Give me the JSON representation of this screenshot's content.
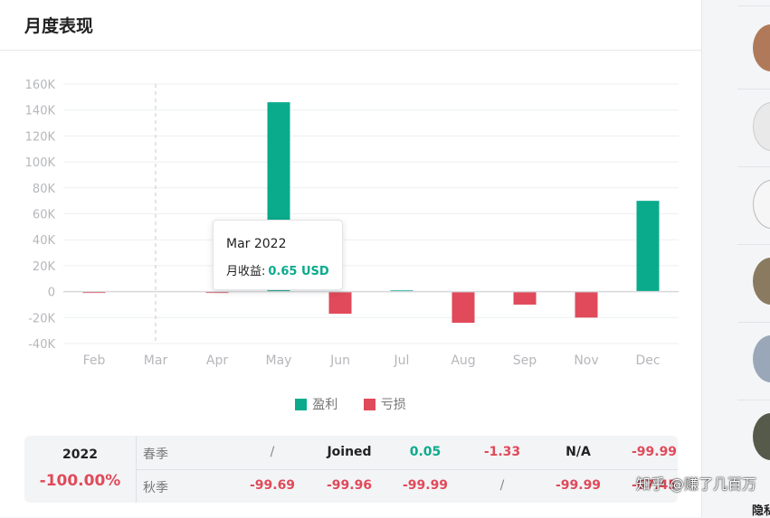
{
  "card": {
    "title": "月度表现"
  },
  "chart_data": {
    "type": "bar",
    "categories": [
      "Feb",
      "Mar",
      "Apr",
      "May",
      "Jun",
      "Jul",
      "Aug",
      "Sep",
      "Nov",
      "Dec"
    ],
    "series": [
      {
        "name": "盈利",
        "color": "#0aab8c",
        "values": [
          0,
          0,
          0,
          146000,
          0,
          1000,
          0,
          0,
          0,
          70000
        ]
      },
      {
        "name": "亏损",
        "color": "#e04a5a",
        "values": [
          -500,
          0,
          -600,
          0,
          -17000,
          0,
          -24000,
          -10000,
          -20000,
          0
        ]
      }
    ],
    "y_ticks": [
      "160K",
      "140K",
      "120K",
      "100K",
      "80K",
      "60K",
      "40K",
      "20K",
      "0",
      "-20K",
      "-40K"
    ],
    "ylim": [
      -40000,
      160000
    ],
    "grid": true,
    "legend": "bottom-center"
  },
  "tooltip": {
    "title": "Mar 2022",
    "label": "月收益:",
    "value": "0.65 USD"
  },
  "season_table": {
    "year": "2022",
    "year_return": "-100.00%",
    "rows": [
      {
        "season": "春季",
        "cells": [
          "/",
          "Joined",
          "0.05",
          "-1.33",
          "N/A",
          "-99.99"
        ]
      },
      {
        "season": "秋季",
        "cells": [
          "-99.69",
          "-99.96",
          "-99.99",
          "/",
          "-99.99",
          "-67.45"
        ]
      }
    ]
  },
  "watermark": "知乎 @赚了几百万",
  "corner_text": "隐私"
}
